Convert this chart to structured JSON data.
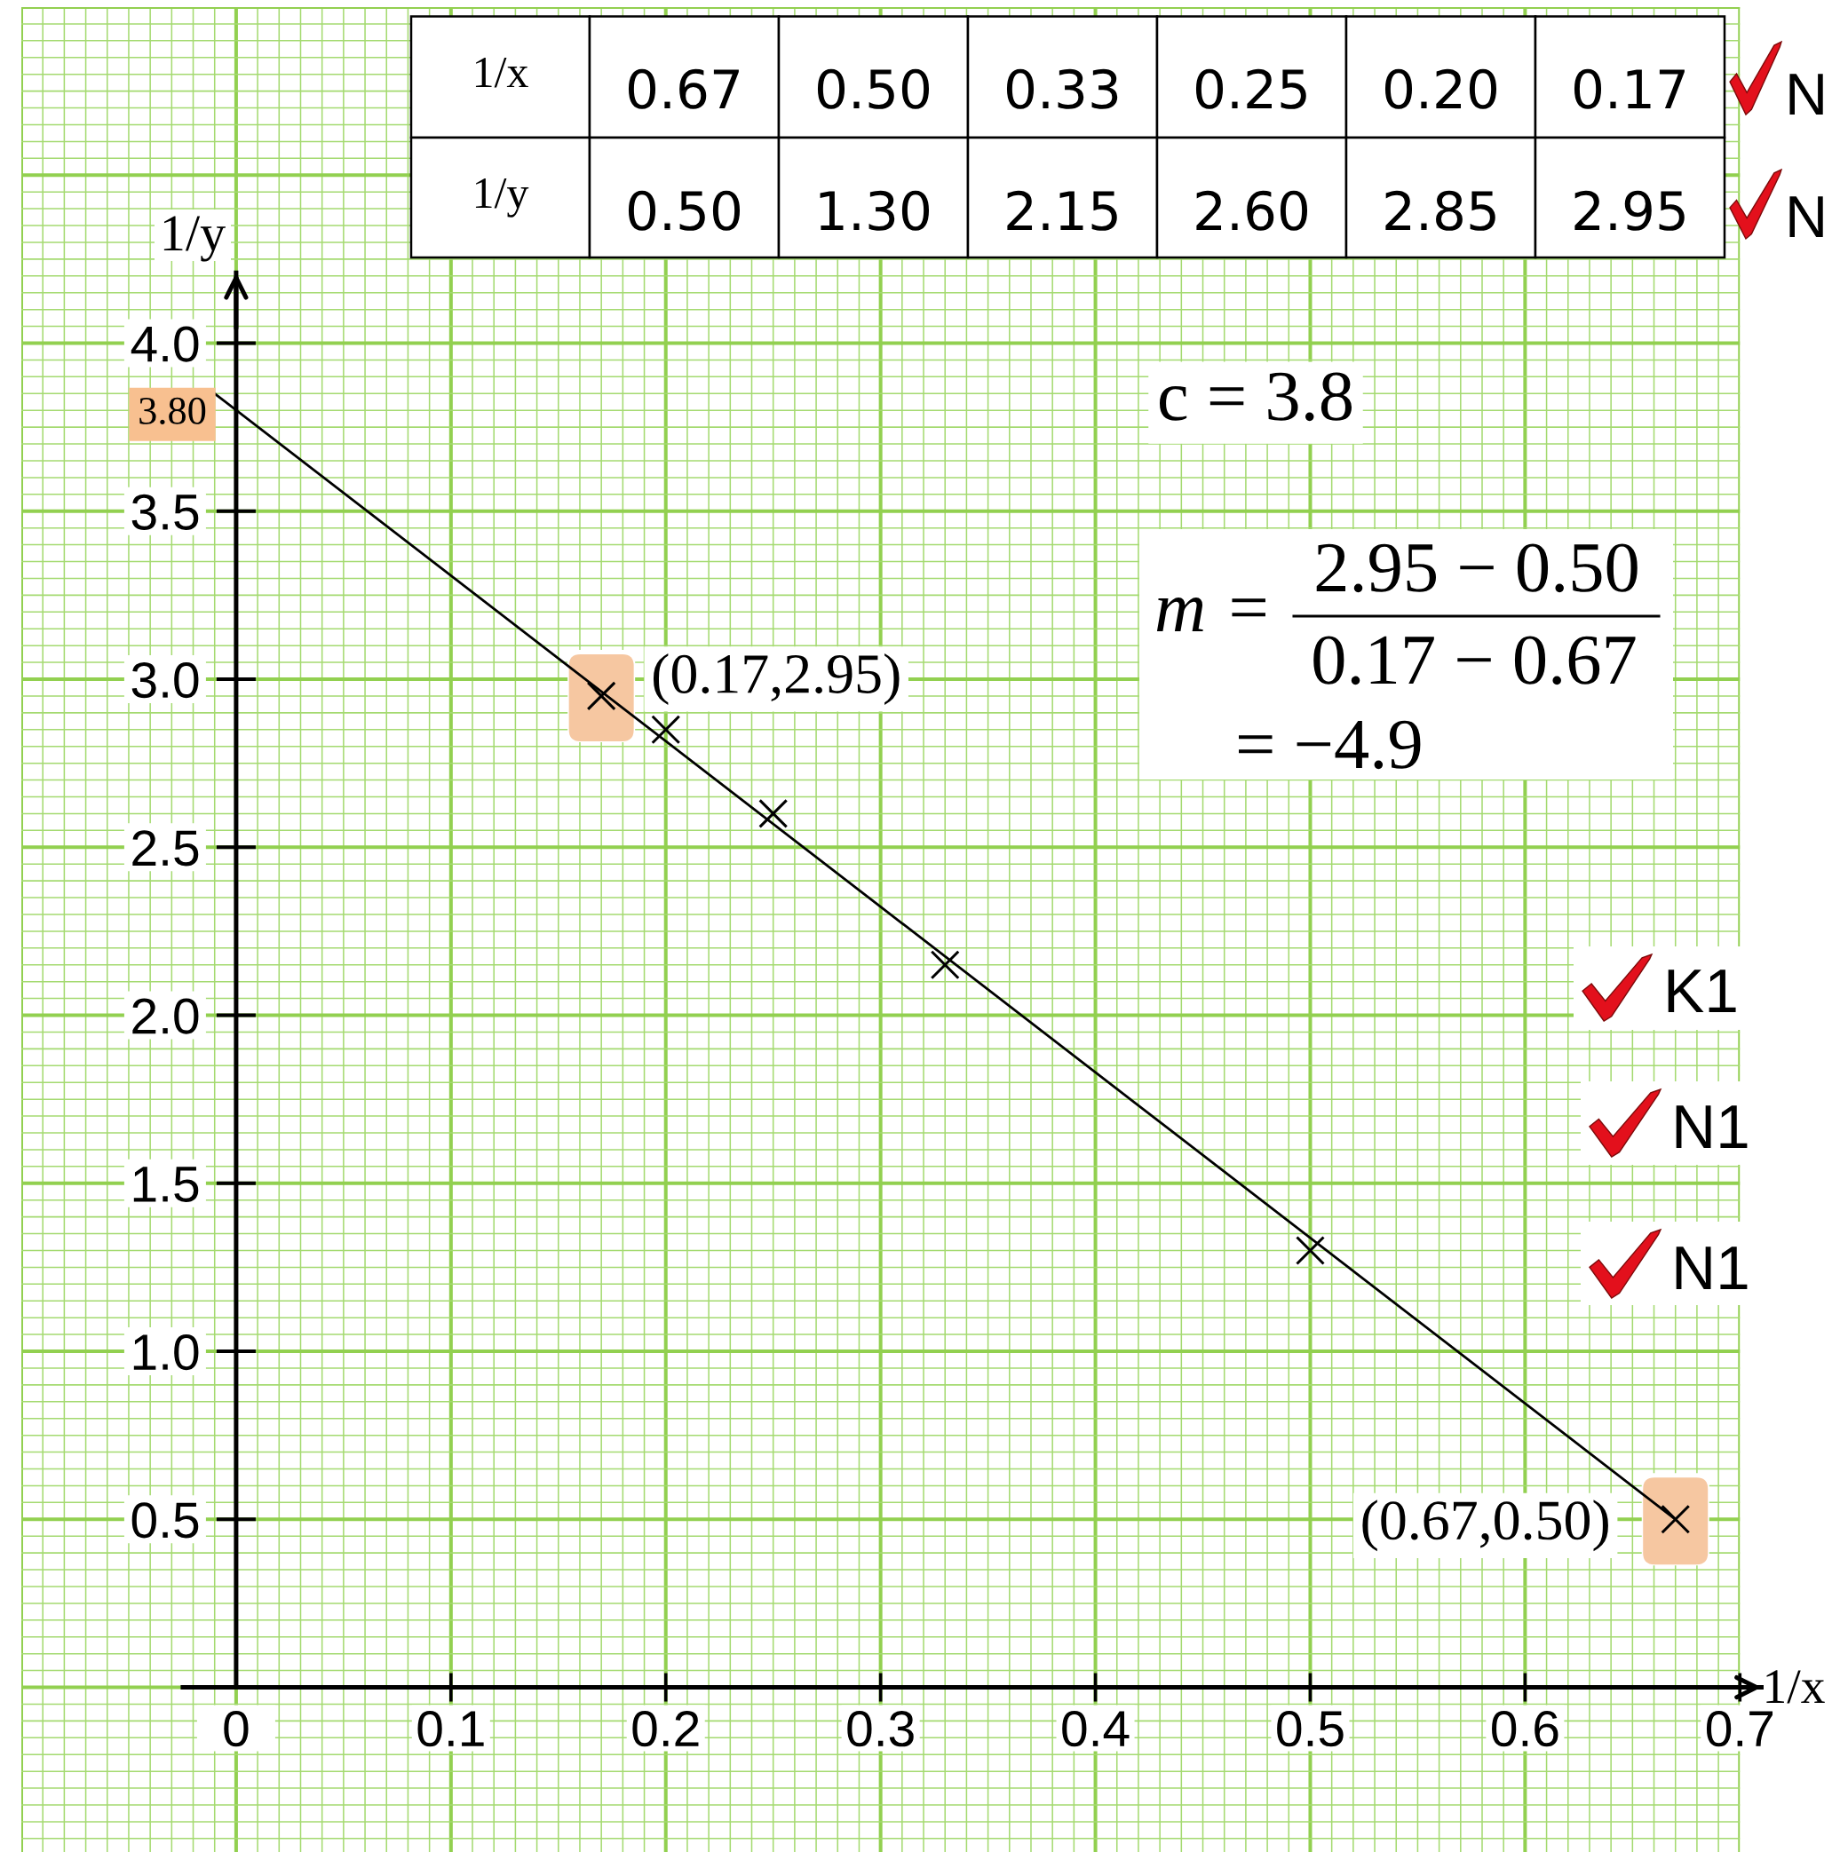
{
  "chart_data": {
    "type": "scatter",
    "xlabel": "1/x",
    "ylabel": "1/y",
    "xlim": [
      -0.1,
      0.7
    ],
    "ylim": [
      -0.49,
      5.0
    ],
    "xticks": [
      {
        "value": -0.1,
        "label": null
      },
      {
        "value": -0.09,
        "label": null
      },
      {
        "value": -0.08,
        "label": null
      },
      {
        "value": -0.07,
        "label": null
      },
      {
        "value": -0.06,
        "label": null
      },
      {
        "value": -0.05,
        "label": null
      },
      {
        "value": -0.04,
        "label": null
      },
      {
        "value": -0.03,
        "label": null
      },
      {
        "value": -0.02,
        "label": null
      },
      {
        "value": -0.01,
        "label": null
      },
      {
        "value": 0,
        "label": "0"
      },
      {
        "value": 0.01,
        "label": null
      },
      {
        "value": 0.02,
        "label": null
      },
      {
        "value": 0.03,
        "label": null
      },
      {
        "value": 0.04,
        "label": null
      },
      {
        "value": 0.05,
        "label": null
      },
      {
        "value": 0.06,
        "label": null
      },
      {
        "value": 0.07,
        "label": null
      },
      {
        "value": 0.08,
        "label": null
      },
      {
        "value": 0.09,
        "label": null
      },
      0.1,
      {
        "value": 0.11,
        "label": null
      },
      {
        "value": 0.12,
        "label": null
      },
      {
        "value": 0.13,
        "label": null
      },
      {
        "value": 0.14,
        "label": null
      },
      {
        "value": 0.15,
        "label": null
      },
      {
        "value": 0.16,
        "label": null
      },
      {
        "value": 0.17,
        "label": null
      },
      {
        "value": 0.18,
        "label": null
      },
      {
        "value": 0.19,
        "label": null
      },
      0.2,
      {
        "value": 0.21,
        "label": null
      },
      {
        "value": 0.22,
        "label": null
      },
      {
        "value": 0.23,
        "label": null
      },
      {
        "value": 0.24,
        "label": null
      },
      {
        "value": 0.25,
        "label": null
      },
      {
        "value": 0.26,
        "label": null
      },
      {
        "value": 0.27,
        "label": null
      },
      {
        "value": 0.28,
        "label": null
      },
      {
        "value": 0.29,
        "label": null
      },
      0.3,
      {
        "value": 0.31,
        "label": null
      },
      {
        "value": 0.32,
        "label": null
      },
      {
        "value": 0.33,
        "label": null
      },
      {
        "value": 0.34,
        "label": null
      },
      {
        "value": 0.35,
        "label": null
      },
      {
        "value": 0.36,
        "label": null
      },
      {
        "value": 0.37,
        "label": null
      },
      {
        "value": 0.38,
        "label": null
      },
      {
        "value": 0.39,
        "label": null
      },
      0.4,
      {
        "value": 0.41,
        "label": null
      },
      {
        "value": 0.42,
        "label": null
      },
      {
        "value": 0.43,
        "label": null
      },
      {
        "value": 0.44,
        "label": null
      },
      {
        "value": 0.45,
        "label": null
      },
      {
        "value": 0.46,
        "label": null
      },
      {
        "value": 0.47,
        "label": null
      },
      {
        "value": 0.48,
        "label": null
      },
      {
        "value": 0.49,
        "label": null
      },
      0.5,
      {
        "value": 0.51,
        "label": null
      },
      {
        "value": 0.52,
        "label": null
      },
      {
        "value": 0.53,
        "label": null
      },
      {
        "value": 0.54,
        "label": null
      },
      {
        "value": 0.55,
        "label": null
      },
      {
        "value": 0.56,
        "label": null
      },
      {
        "value": 0.57,
        "label": null
      },
      {
        "value": 0.58,
        "label": null
      },
      {
        "value": 0.59,
        "label": null
      },
      0.6,
      {
        "value": 0.61,
        "label": null
      },
      {
        "value": 0.62,
        "label": null
      },
      {
        "value": 0.63,
        "label": null
      },
      {
        "value": 0.64,
        "label": null
      },
      {
        "value": 0.65,
        "label": null
      },
      {
        "value": 0.66,
        "label": null
      },
      {
        "value": 0.67,
        "label": null
      },
      {
        "value": 0.68,
        "label": null
      },
      {
        "value": 0.69,
        "label": null
      },
      0.7
    ],
    "yticks": [
      {
        "value": -0.45,
        "label": null
      },
      {
        "value": -0.4,
        "label": null
      },
      {
        "value": -0.35,
        "label": null
      },
      {
        "value": -0.3,
        "label": null
      },
      {
        "value": -0.25,
        "label": null
      },
      {
        "value": -0.2,
        "label": null
      },
      {
        "value": -0.15,
        "label": null
      },
      {
        "value": -0.1,
        "label": null
      },
      {
        "value": -0.05,
        "label": null
      },
      {
        "value": 0,
        "label": null
      },
      {
        "value": 0.05,
        "label": null
      },
      {
        "value": 0.1,
        "label": null
      },
      {
        "value": 0.15,
        "label": null
      },
      {
        "value": 0.2,
        "label": null
      },
      {
        "value": 0.25,
        "label": null
      },
      {
        "value": 0.3,
        "label": null
      },
      {
        "value": 0.35,
        "label": null
      },
      {
        "value": 0.4,
        "label": null
      },
      {
        "value": 0.45,
        "label": null
      },
      0.5,
      {
        "value": 0.55,
        "label": null
      },
      {
        "value": 0.6,
        "label": null
      },
      {
        "value": 0.65,
        "label": null
      },
      {
        "value": 0.7,
        "label": null
      },
      {
        "value": 0.75,
        "label": null
      },
      {
        "value": 0.8,
        "label": null
      },
      {
        "value": 0.85,
        "label": null
      },
      {
        "value": 0.9,
        "label": null
      },
      {
        "value": 0.95,
        "label": null
      },
      {
        "value": 1,
        "label": "1.0"
      },
      {
        "value": 1.05,
        "label": null
      },
      {
        "value": 1.1,
        "label": null
      },
      {
        "value": 1.15,
        "label": null
      },
      {
        "value": 1.2,
        "label": null
      },
      {
        "value": 1.25,
        "label": null
      },
      {
        "value": 1.3,
        "label": null
      },
      {
        "value": 1.35,
        "label": null
      },
      {
        "value": 1.4,
        "label": null
      },
      {
        "value": 1.45,
        "label": null
      },
      1.5,
      {
        "value": 1.55,
        "label": null
      },
      {
        "value": 1.6,
        "label": null
      },
      {
        "value": 1.65,
        "label": null
      },
      {
        "value": 1.7,
        "label": null
      },
      {
        "value": 1.75,
        "label": null
      },
      {
        "value": 1.8,
        "label": null
      },
      {
        "value": 1.85,
        "label": null
      },
      {
        "value": 1.9,
        "label": null
      },
      {
        "value": 1.95,
        "label": null
      },
      {
        "value": 2,
        "label": "2.0"
      },
      {
        "value": 2.05,
        "label": null
      },
      {
        "value": 2.1,
        "label": null
      },
      {
        "value": 2.15,
        "label": null
      },
      {
        "value": 2.2,
        "label": null
      },
      {
        "value": 2.25,
        "label": null
      },
      {
        "value": 2.3,
        "label": null
      },
      {
        "value": 2.35,
        "label": null
      },
      {
        "value": 2.4,
        "label": null
      },
      {
        "value": 2.45,
        "label": null
      },
      2.5,
      {
        "value": 2.55,
        "label": null
      },
      {
        "value": 2.6,
        "label": null
      },
      {
        "value": 2.65,
        "label": null
      },
      {
        "value": 2.7,
        "label": null
      },
      {
        "value": 2.75,
        "label": null
      },
      {
        "value": 2.8,
        "label": null
      },
      {
        "value": 2.85,
        "label": null
      },
      {
        "value": 2.9,
        "label": null
      },
      {
        "value": 2.95,
        "label": null
      },
      {
        "value": 3,
        "label": "3.0"
      },
      {
        "value": 3.05,
        "label": null
      },
      {
        "value": 3.1,
        "label": null
      },
      {
        "value": 3.15,
        "label": null
      },
      {
        "value": 3.2,
        "label": null
      },
      {
        "value": 3.25,
        "label": null
      },
      {
        "value": 3.3,
        "label": null
      },
      {
        "value": 3.35,
        "label": null
      },
      {
        "value": 3.4,
        "label": null
      },
      {
        "value": 3.45,
        "label": null
      },
      3.5,
      {
        "value": 3.55,
        "label": null
      },
      {
        "value": 3.6,
        "label": null
      },
      {
        "value": 3.65,
        "label": null
      },
      {
        "value": 3.7,
        "label": null
      },
      {
        "value": 3.75,
        "label": null
      },
      {
        "value": 3.8,
        "label": null
      },
      {
        "value": 3.85,
        "label": null
      },
      {
        "value": 3.9,
        "label": null
      },
      {
        "value": 3.95,
        "label": null
      },
      {
        "value": 4,
        "label": "4.0"
      },
      {
        "value": 4.05,
        "label": null
      },
      {
        "value": 4.1,
        "label": null
      },
      {
        "value": 4.15,
        "label": null
      },
      {
        "value": 4.2,
        "label": null
      },
      {
        "value": 4.25,
        "label": null
      },
      {
        "value": 4.3,
        "label": null
      },
      {
        "value": 4.35,
        "label": null
      },
      {
        "value": 4.4,
        "label": null
      },
      {
        "value": 4.45,
        "label": null
      },
      {
        "value": 4.5,
        "label": null
      },
      {
        "value": 4.55,
        "label": null
      },
      {
        "value": 4.6,
        "label": null
      },
      {
        "value": 4.65,
        "label": null
      },
      {
        "value": 4.7,
        "label": null
      },
      {
        "value": 4.75,
        "label": null
      },
      {
        "value": 4.8,
        "label": null
      },
      {
        "value": 4.85,
        "label": null
      },
      {
        "value": 4.9,
        "label": null
      },
      {
        "value": 4.95,
        "label": null
      },
      {
        "value": 5,
        "label": null
      }
    ],
    "grid": true,
    "series": [
      {
        "type": "line",
        "color": "#000000",
        "x": [
          -0.01,
          0.67
        ],
        "values": [
          3.85,
          0.5
        ]
      },
      {
        "marker": "cross",
        "color": "#000000",
        "x": [
          0.67,
          0.5,
          0.33,
          0.25,
          0.2,
          0.17
        ],
        "values": [
          0.5,
          1.3,
          2.15,
          2.6,
          2.85,
          2.95
        ]
      }
    ],
    "annotations": [
      {
        "text": "3.80",
        "x": 0,
        "y": 3.8
      },
      {
        "text": "(0.17,2.95)",
        "x": 0.17,
        "y": 2.95
      },
      {
        "text": "(0.67,0.50)",
        "x": 0.67,
        "y": 0.5
      },
      "0.67",
      "0.50",
      "0.33",
      "0.25",
      "0.20",
      "0.17",
      "0.50",
      "1.30",
      "2.15",
      "2.60",
      "2.85",
      "2.95",
      "c = 3.8",
      "m =",
      "2.95 − 0.50",
      "0.17 − 0.67",
      "= −4.9",
      "N",
      "N",
      "K1",
      "N1",
      "N1"
    ]
  }
}
